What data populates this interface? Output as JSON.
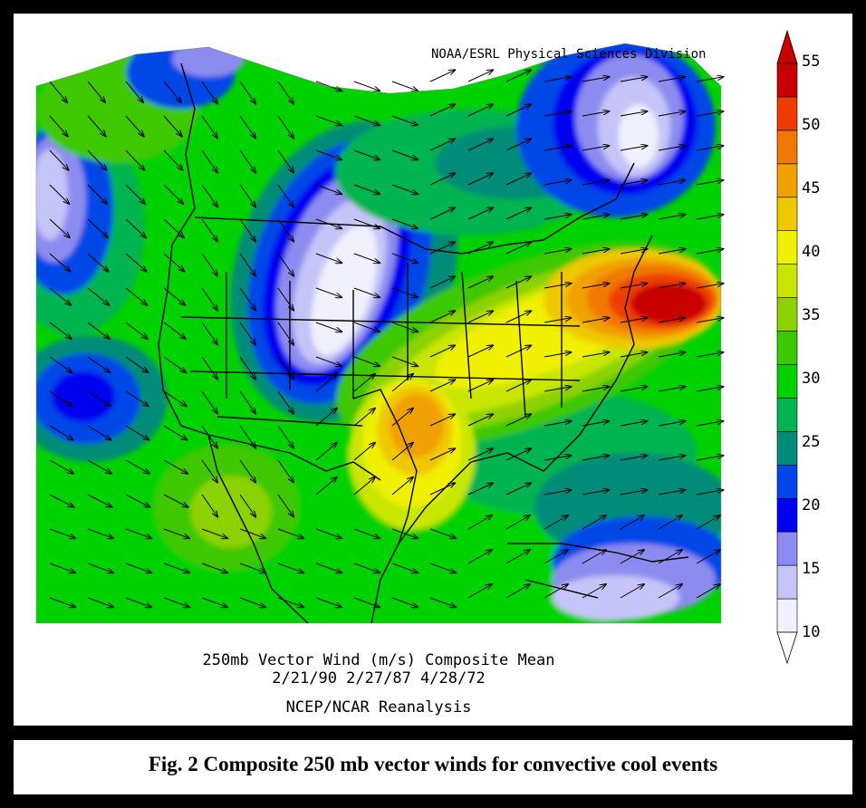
{
  "map": {
    "credit": "NOAA/ESRL Physical Sciences Division",
    "footer": [
      "250mb Vector Wind (m/s) Composite Mean",
      "2/21/90 2/27/87 4/28/72",
      "NCEP/NCAR Reanalysis"
    ],
    "caption": "Fig. 2 Composite 250 mb vector winds for convective cool events",
    "region": "North America (continental United States, southern Canada, Mexico, Caribbean)",
    "field": "250 mb wind speed (m/s), shaded, with wind vectors",
    "features": [
      {
        "name": "jet maximum",
        "location": "off Mid-Atlantic / New England coast",
        "value_range": "50-55"
      },
      {
        "name": "secondary maximum",
        "location": "Oklahoma / Texas",
        "value_range": "45-50"
      },
      {
        "name": "wind minimum",
        "location": "northern Rockies / Montana-Dakotas",
        "value_range": "<10"
      },
      {
        "name": "wind minimum",
        "location": "Quebec / Labrador",
        "value_range": "10-15"
      },
      {
        "name": "wind minimum",
        "location": "Pacific off British Columbia",
        "value_range": "10-15"
      },
      {
        "name": "wind minimum",
        "location": "Caribbean",
        "value_range": "15-20"
      }
    ]
  },
  "colorbar": {
    "unit": "m/s",
    "ticks": [
      "55",
      "50",
      "45",
      "40",
      "35",
      "30",
      "25",
      "20",
      "15",
      "10"
    ],
    "colors": [
      "#f0f0fe",
      "#c4c4f8",
      "#8c8cf0",
      "#0000f0",
      "#0046e8",
      "#008c78",
      "#00b450",
      "#00d200",
      "#3cc800",
      "#8cd200",
      "#c8e600",
      "#f0f000",
      "#f0c800",
      "#f0a000",
      "#f07800",
      "#f03c00",
      "#c80000"
    ]
  }
}
